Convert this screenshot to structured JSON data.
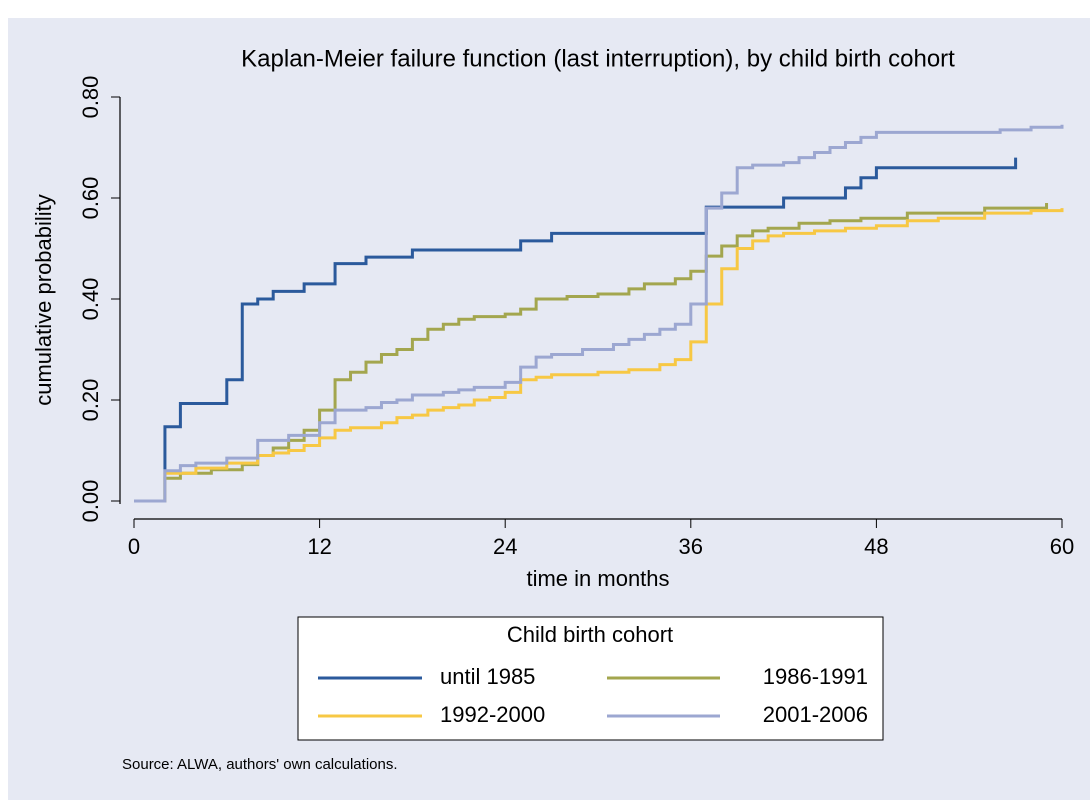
{
  "chart_data": {
    "type": "line",
    "step": "post",
    "title": "Kaplan-Meier failure function (last interruption), by child birth cohort",
    "x_label": "time in months",
    "y_label": "cumulative probability",
    "xlim": [
      0,
      60
    ],
    "xticks": [
      0,
      12,
      24,
      36,
      48,
      60
    ],
    "ylim": [
      0,
      0.8
    ],
    "yticks": [
      {
        "value": 0,
        "label": "0.00"
      },
      {
        "value": 0.2,
        "label": "0.20"
      },
      {
        "value": 0.4,
        "label": "0.40"
      },
      {
        "value": 0.6,
        "label": "0.60"
      },
      {
        "value": 0.8,
        "label": "0.80"
      }
    ],
    "legend_title": "Child birth cohort",
    "legend_position": "bottom",
    "source": "Source: ALWA, authors' own calculations.",
    "series": [
      {
        "name": "until 1985",
        "color": "#2b5a9c",
        "x": [
          0,
          2,
          3,
          6,
          7,
          8,
          9,
          11,
          13,
          15,
          18,
          25,
          27,
          37,
          42,
          46,
          47,
          48,
          57,
          57
        ],
        "values": [
          0,
          0.147,
          0.193,
          0.24,
          0.39,
          0.4,
          0.415,
          0.43,
          0.47,
          0.483,
          0.497,
          0.515,
          0.53,
          0.582,
          0.6,
          0.62,
          0.64,
          0.66,
          0.66,
          0.68
        ]
      },
      {
        "name": "1986-1991",
        "color": "#a3a64e",
        "x": [
          0,
          2,
          3,
          5,
          7,
          8,
          9,
          10,
          11,
          12,
          13,
          14,
          15,
          16,
          17,
          18,
          19,
          20,
          21,
          22,
          24,
          25,
          26,
          28,
          30,
          32,
          33,
          35,
          36,
          37,
          38,
          39,
          40,
          41,
          43,
          45,
          47,
          50,
          55,
          59
        ],
        "values": [
          0,
          0.045,
          0.055,
          0.062,
          0.072,
          0.09,
          0.105,
          0.12,
          0.14,
          0.18,
          0.24,
          0.255,
          0.275,
          0.29,
          0.3,
          0.32,
          0.34,
          0.35,
          0.36,
          0.365,
          0.37,
          0.38,
          0.4,
          0.405,
          0.41,
          0.42,
          0.43,
          0.44,
          0.455,
          0.485,
          0.505,
          0.525,
          0.535,
          0.54,
          0.55,
          0.555,
          0.56,
          0.57,
          0.58,
          0.59
        ]
      },
      {
        "name": "1992-2000",
        "color": "#f7c844",
        "x": [
          0,
          2,
          4,
          6,
          8,
          9,
          10,
          11,
          12,
          13,
          14,
          16,
          17,
          18,
          19,
          20,
          21,
          22,
          23,
          24,
          25,
          26,
          27,
          30,
          32,
          34,
          35,
          36,
          37,
          38,
          39,
          40,
          41,
          42,
          44,
          46,
          48,
          50,
          52,
          55,
          58,
          60
        ],
        "values": [
          0,
          0.055,
          0.065,
          0.075,
          0.09,
          0.095,
          0.1,
          0.11,
          0.125,
          0.14,
          0.145,
          0.155,
          0.165,
          0.17,
          0.18,
          0.185,
          0.19,
          0.2,
          0.205,
          0.215,
          0.24,
          0.245,
          0.25,
          0.255,
          0.26,
          0.27,
          0.28,
          0.315,
          0.39,
          0.46,
          0.5,
          0.515,
          0.525,
          0.53,
          0.535,
          0.54,
          0.545,
          0.555,
          0.56,
          0.57,
          0.575,
          0.58
        ]
      },
      {
        "name": "2001-2006",
        "color": "#9ca7d1",
        "x": [
          0,
          2,
          3,
          4,
          6,
          8,
          10,
          12,
          13,
          15,
          16,
          17,
          18,
          20,
          21,
          22,
          24,
          25,
          26,
          27,
          29,
          31,
          32,
          33,
          34,
          35,
          36,
          37,
          38,
          39,
          40,
          42,
          43,
          44,
          45,
          46,
          47,
          48,
          56,
          58,
          60
        ],
        "values": [
          0,
          0.06,
          0.07,
          0.075,
          0.085,
          0.12,
          0.13,
          0.155,
          0.18,
          0.185,
          0.195,
          0.2,
          0.21,
          0.215,
          0.22,
          0.225,
          0.235,
          0.265,
          0.285,
          0.29,
          0.3,
          0.31,
          0.32,
          0.33,
          0.34,
          0.35,
          0.39,
          0.58,
          0.61,
          0.66,
          0.665,
          0.67,
          0.68,
          0.69,
          0.7,
          0.71,
          0.72,
          0.73,
          0.735,
          0.74,
          0.745
        ]
      }
    ]
  }
}
